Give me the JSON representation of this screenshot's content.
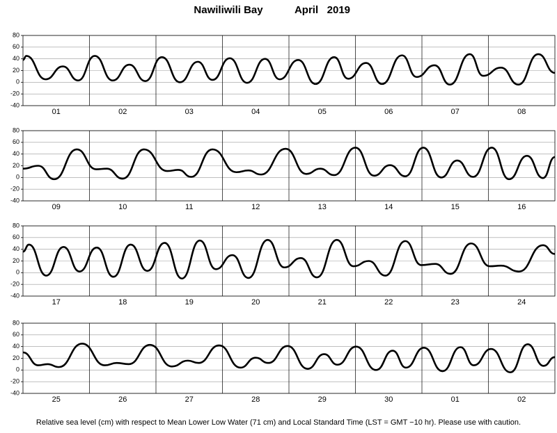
{
  "title": "Nawiliwili Bay",
  "month": "April   2019",
  "footnote": "Relative sea level (cm) with respect to Mean Lower Low Water (71 cm) and Local Standard Time (LST = GMT −10 hr). Please use with caution.",
  "chart_data": [
    {
      "type": "line",
      "categories": [
        "01",
        "02",
        "03",
        "04",
        "05",
        "06",
        "07",
        "08"
      ],
      "xlim": [
        0,
        8
      ],
      "ylim": [
        -40,
        80
      ],
      "yticks": [
        -40,
        -20,
        0,
        20,
        40,
        60,
        80
      ],
      "grid": true,
      "series": [
        {
          "name": null,
          "color": "#000000",
          "x": [
            0,
            0.05,
            0.34,
            0.6,
            0.83,
            1.08,
            1.35,
            1.6,
            1.84,
            2.09,
            2.36,
            2.63,
            2.85,
            3.11,
            3.37,
            3.64,
            3.86,
            4.14,
            4.4,
            4.68,
            4.89,
            5.16,
            5.4,
            5.7,
            5.92,
            6.19,
            6.42,
            6.72,
            6.92,
            7.19,
            7.45,
            7.75,
            8
          ],
          "values": [
            38,
            45,
            5,
            27,
            3,
            45,
            3,
            30,
            2,
            43,
            0,
            35,
            4,
            41,
            -1,
            40,
            5,
            38,
            -3,
            43,
            6,
            33,
            -3,
            46,
            9,
            29,
            -4,
            48,
            11,
            25,
            -4,
            48,
            16
          ]
        }
      ]
    },
    {
      "type": "line",
      "categories": [
        "09",
        "10",
        "11",
        "12",
        "13",
        "14",
        "15",
        "16"
      ],
      "xlim": [
        0,
        8
      ],
      "ylim": [
        -40,
        80
      ],
      "yticks": [
        -40,
        -20,
        0,
        20,
        40,
        60,
        80
      ],
      "grid": true,
      "series": [
        {
          "name": null,
          "color": "#000000",
          "x": [
            0,
            0.23,
            0.47,
            0.81,
            1.1,
            1.26,
            1.5,
            1.82,
            2.17,
            2.34,
            2.53,
            2.85,
            3.21,
            3.39,
            3.58,
            3.95,
            4.26,
            4.47,
            4.68,
            5.0,
            5.28,
            5.52,
            5.75,
            6.02,
            6.29,
            6.53,
            6.77,
            7.05,
            7.31,
            7.58,
            7.82,
            8
          ],
          "values": [
            15,
            20,
            -3,
            48,
            14,
            15,
            -2,
            48,
            11,
            13,
            1,
            48,
            9,
            12,
            5,
            49,
            6,
            15,
            4,
            51,
            3,
            21,
            2,
            51,
            0,
            29,
            1,
            51,
            -3,
            37,
            -1,
            35
          ]
        }
      ]
    },
    {
      "type": "line",
      "categories": [
        "17",
        "18",
        "19",
        "20",
        "21",
        "22",
        "23",
        "24"
      ],
      "xlim": [
        0,
        8
      ],
      "ylim": [
        -40,
        80
      ],
      "yticks": [
        -40,
        -20,
        0,
        20,
        40,
        60,
        80
      ],
      "grid": true,
      "series": [
        {
          "name": null,
          "color": "#000000",
          "x": [
            0,
            0.09,
            0.35,
            0.61,
            0.85,
            1.11,
            1.36,
            1.62,
            1.87,
            2.13,
            2.39,
            2.66,
            2.9,
            3.15,
            3.39,
            3.68,
            3.93,
            4.18,
            4.42,
            4.72,
            4.97,
            5.2,
            5.45,
            5.75,
            5.99,
            6.2,
            6.43,
            6.74,
            7.02,
            7.19,
            7.46,
            7.82,
            8
          ],
          "values": [
            36,
            48,
            -5,
            44,
            2,
            43,
            -7,
            48,
            3,
            51,
            -10,
            55,
            6,
            30,
            -9,
            56,
            9,
            25,
            -8,
            56,
            11,
            20,
            -5,
            54,
            13,
            15,
            -2,
            50,
            11,
            12,
            2,
            47,
            32
          ]
        }
      ]
    },
    {
      "type": "line",
      "categories": [
        "25",
        "26",
        "27",
        "28",
        "29",
        "30",
        "01",
        "02"
      ],
      "xlim": [
        0,
        8
      ],
      "ylim": [
        -40,
        80
      ],
      "yticks": [
        -40,
        -20,
        0,
        20,
        40,
        60,
        80
      ],
      "grid": true,
      "series": [
        {
          "name": null,
          "color": "#000000",
          "x": [
            0,
            0.23,
            0.37,
            0.54,
            0.89,
            1.23,
            1.41,
            1.59,
            1.91,
            2.24,
            2.48,
            2.64,
            2.95,
            3.27,
            3.5,
            3.69,
            3.98,
            4.28,
            4.53,
            4.73,
            5.01,
            5.31,
            5.56,
            5.76,
            6.03,
            6.31,
            6.58,
            6.78,
            7.04,
            7.33,
            7.59,
            7.83,
            8
          ],
          "values": [
            30,
            8,
            10,
            5,
            45,
            8,
            12,
            10,
            43,
            6,
            16,
            12,
            42,
            4,
            21,
            12,
            41,
            2,
            27,
            9,
            40,
            0,
            33,
            4,
            38,
            -2,
            39,
            8,
            36,
            -4,
            44,
            7,
            22
          ]
        }
      ]
    }
  ]
}
